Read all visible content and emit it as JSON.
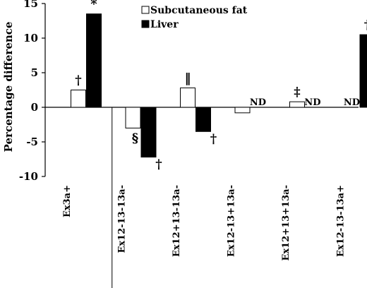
{
  "chart_data": {
    "type": "bar",
    "ylabel": "Percentage difference",
    "ylim": [
      -10,
      15
    ],
    "yticks": [
      15,
      10,
      5,
      0,
      -5,
      -10
    ],
    "ytick_labels": [
      "15",
      "10",
      "5",
      "0",
      "-5",
      "-10"
    ],
    "grid": false,
    "legend_position": "top-center",
    "categories": [
      "Ex3a+",
      "Ex12-13-13a-",
      "Ex12+13-13a-",
      "Ex12-13+13a-",
      "Ex12+13+13a-",
      "Ex12-13-13a+"
    ],
    "series": [
      {
        "name": "Subcutaneous fat",
        "fill": "#ffffff",
        "values": [
          2.5,
          -3.0,
          2.8,
          -0.8,
          0.8,
          null
        ],
        "annotations": [
          "†",
          "§",
          "‖",
          "",
          "‡",
          "ND"
        ]
      },
      {
        "name": "Liver",
        "fill": "#000000",
        "values": [
          13.5,
          -7.2,
          -3.5,
          null,
          null,
          10.5
        ],
        "annotations": [
          "*",
          "†",
          "†",
          "ND",
          "ND",
          "†"
        ]
      }
    ]
  }
}
